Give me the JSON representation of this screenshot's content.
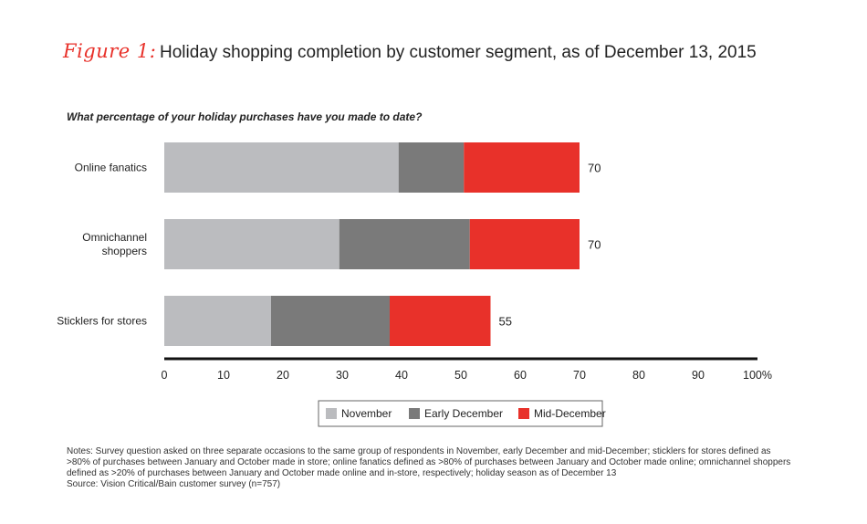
{
  "figure_label": "Figure 1:",
  "title": "Holiday shopping completion by customer segment, as of December 13, 2015",
  "notes": "Notes: Survey question asked on three separate occasions to the same group of respondents in November, early December and mid-December; sticklers for stores defined as >80% of purchases between January and October made in store; online fanatics defined as >80% of purchases between January and October made online; omnichannel shoppers defined as >20% of purchases between January and October made online and in-store, respectively; holiday season as of December 13",
  "source": "Source: Vision Critical/Bain customer survey (n=757)",
  "chart_data": {
    "type": "bar",
    "orientation": "horizontal",
    "stacked": true,
    "subtitle": "What percentage of your holiday purchases have you made to date?",
    "categories": [
      [
        "Online fanatics"
      ],
      [
        "Omnichannel",
        "shoppers"
      ],
      [
        "Sticklers for stores"
      ]
    ],
    "series": [
      {
        "name": "November",
        "color": "#bbbcbf",
        "values": [
          39.5,
          29.5,
          18
        ]
      },
      {
        "name": "Early December",
        "color": "#7a7a7a",
        "values": [
          11,
          22,
          20
        ]
      },
      {
        "name": "Mid-December",
        "color": "#e8312a",
        "values": [
          19.5,
          18.5,
          17
        ]
      }
    ],
    "totals": [
      "70",
      "70",
      "55"
    ],
    "x_ticks": [
      "0",
      "10",
      "20",
      "30",
      "40",
      "50",
      "60",
      "70",
      "80",
      "90",
      "100%"
    ],
    "xlim": [
      0,
      100
    ],
    "grid": false,
    "legend_position": "bottom"
  }
}
